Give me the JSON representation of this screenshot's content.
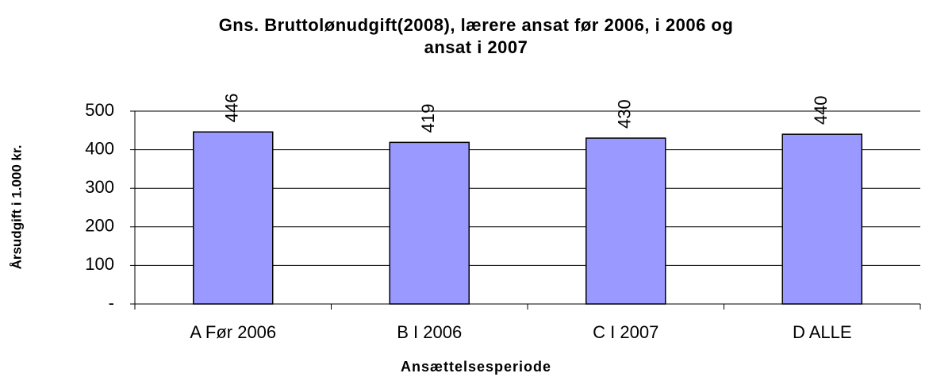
{
  "chart_data": {
    "type": "bar",
    "title": "Gns. Bruttolønudgift(2008), lærere ansat før 2006, i 2006 og ansat i 2007",
    "x_label": "Ansættelsesperiode",
    "y_label": "Årsudgift i 1.000 kr.",
    "categories": [
      "A Før 2006",
      "B I 2006",
      "C I 2007",
      "D ALLE"
    ],
    "values": [
      446,
      419,
      430,
      440
    ],
    "color": "#9999ff",
    "ylim": [
      0,
      500
    ],
    "yticks": [
      {
        "value": 0,
        "label": "-"
      },
      100,
      200,
      300,
      400,
      500
    ],
    "grid": true
  }
}
